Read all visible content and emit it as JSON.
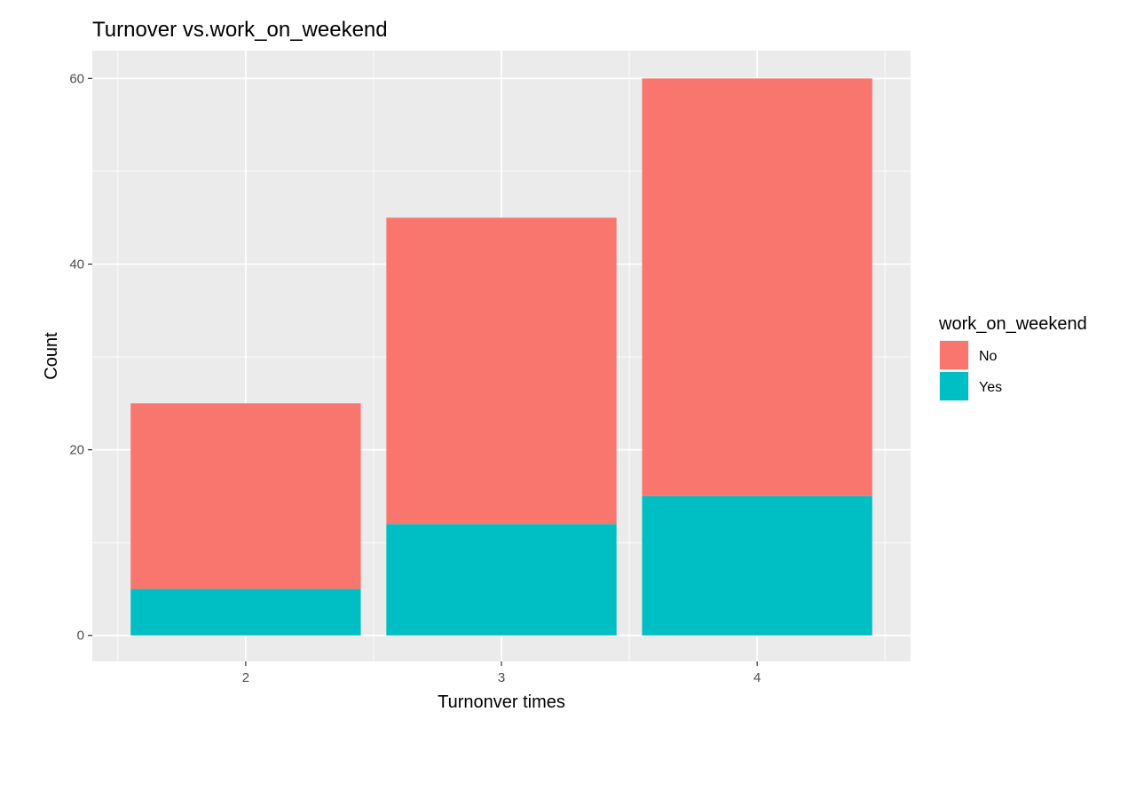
{
  "chart_data": {
    "type": "bar",
    "stacked": true,
    "title": "Turnover vs.work_on_weekend",
    "xlabel": "Turnonver times",
    "ylabel": "Count",
    "categories": [
      "2",
      "3",
      "4"
    ],
    "series": [
      {
        "name": "No",
        "color": "#F8766D",
        "values": [
          20,
          33,
          45
        ]
      },
      {
        "name": "Yes",
        "color": "#00BFC4",
        "values": [
          5,
          12,
          15
        ]
      }
    ],
    "ylim": [
      -2.8,
      63
    ],
    "yticks": [
      0,
      20,
      40,
      60
    ],
    "grid": true,
    "legend": {
      "title": "work_on_weekend",
      "position": "right"
    }
  }
}
